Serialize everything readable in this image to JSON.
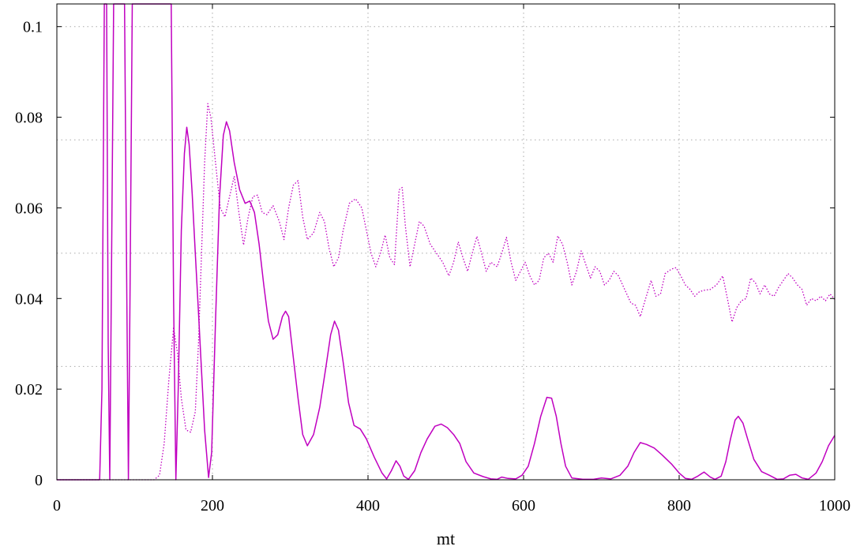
{
  "chart_data": {
    "type": "line",
    "title": "",
    "xlabel": "mt",
    "ylabel": "",
    "xlim": [
      0,
      1000
    ],
    "ylim": [
      0,
      0.105
    ],
    "x_ticks": [
      0,
      200,
      400,
      600,
      800,
      1000
    ],
    "x_tick_labels": [
      "0",
      "200",
      "400",
      "600",
      "800",
      "1000"
    ],
    "y_ticks": [
      0,
      0.02,
      0.04,
      0.06,
      0.08,
      0.1
    ],
    "y_tick_labels": [
      "0",
      "0.02",
      "0.04",
      "0.06",
      "0.08",
      "0.1"
    ],
    "grid": true,
    "grid_style": "dotted",
    "grid_x": [
      200,
      400,
      600,
      800
    ],
    "grid_y": [
      0.025,
      0.05,
      0.075,
      0.1
    ],
    "legend": "none",
    "series": [
      {
        "style": "solid",
        "color": "#c000c0",
        "points": [
          [
            0,
            0
          ],
          [
            55,
            0
          ],
          [
            58,
            0.02
          ],
          [
            61,
            0.105
          ],
          [
            64,
            0.105
          ],
          [
            66,
            0.03
          ],
          [
            68,
            0
          ],
          [
            70,
            0.04
          ],
          [
            73,
            0.105
          ],
          [
            87,
            0.105
          ],
          [
            90,
            0.04
          ],
          [
            92,
            0
          ],
          [
            94,
            0.04
          ],
          [
            97,
            0.105
          ],
          [
            147,
            0.105
          ],
          [
            150,
            0.04
          ],
          [
            153,
            0
          ],
          [
            156,
            0.02
          ],
          [
            160,
            0.055
          ],
          [
            164,
            0.072
          ],
          [
            167,
            0.0778
          ],
          [
            170,
            0.074
          ],
          [
            174,
            0.063
          ],
          [
            178,
            0.05
          ],
          [
            182,
            0.037
          ],
          [
            186,
            0.024
          ],
          [
            190,
            0.011
          ],
          [
            195,
            0.0005
          ],
          [
            199,
            0.006
          ],
          [
            204,
            0.035
          ],
          [
            209,
            0.062
          ],
          [
            214,
            0.076
          ],
          [
            218,
            0.079
          ],
          [
            222,
            0.077
          ],
          [
            228,
            0.07
          ],
          [
            235,
            0.064
          ],
          [
            242,
            0.061
          ],
          [
            248,
            0.0615
          ],
          [
            254,
            0.059
          ],
          [
            260,
            0.052
          ],
          [
            266,
            0.043
          ],
          [
            272,
            0.035
          ],
          [
            278,
            0.031
          ],
          [
            284,
            0.032
          ],
          [
            290,
            0.036
          ],
          [
            294,
            0.0372
          ],
          [
            298,
            0.036
          ],
          [
            304,
            0.027
          ],
          [
            310,
            0.018
          ],
          [
            316,
            0.01
          ],
          [
            322,
            0.0075
          ],
          [
            330,
            0.01
          ],
          [
            338,
            0.016
          ],
          [
            346,
            0.025
          ],
          [
            352,
            0.032
          ],
          [
            357,
            0.035
          ],
          [
            362,
            0.033
          ],
          [
            368,
            0.026
          ],
          [
            375,
            0.017
          ],
          [
            382,
            0.012
          ],
          [
            390,
            0.0112
          ],
          [
            398,
            0.009
          ],
          [
            408,
            0.005
          ],
          [
            418,
            0.0015
          ],
          [
            424,
            0.0002
          ],
          [
            430,
            0.002
          ],
          [
            436,
            0.0042
          ],
          [
            441,
            0.003
          ],
          [
            446,
            0.0008
          ],
          [
            452,
            0.0001
          ],
          [
            460,
            0.002
          ],
          [
            468,
            0.006
          ],
          [
            476,
            0.009
          ],
          [
            486,
            0.0118
          ],
          [
            494,
            0.0123
          ],
          [
            502,
            0.0115
          ],
          [
            510,
            0.01
          ],
          [
            518,
            0.008
          ],
          [
            526,
            0.004
          ],
          [
            536,
            0.0015
          ],
          [
            548,
            0.0007
          ],
          [
            558,
            0.0002
          ],
          [
            566,
            0.0001
          ],
          [
            572,
            0.0006
          ],
          [
            580,
            0.0003
          ],
          [
            590,
            0.0002
          ],
          [
            598,
            0.001
          ],
          [
            606,
            0.003
          ],
          [
            614,
            0.008
          ],
          [
            622,
            0.014
          ],
          [
            630,
            0.0182
          ],
          [
            636,
            0.018
          ],
          [
            642,
            0.014
          ],
          [
            648,
            0.008
          ],
          [
            654,
            0.003
          ],
          [
            662,
            0.0004
          ],
          [
            676,
            0.0001
          ],
          [
            690,
            0.0001
          ],
          [
            700,
            0.0004
          ],
          [
            712,
            0.0002
          ],
          [
            724,
            0.001
          ],
          [
            734,
            0.003
          ],
          [
            742,
            0.006
          ],
          [
            750,
            0.0082
          ],
          [
            758,
            0.0078
          ],
          [
            768,
            0.007
          ],
          [
            778,
            0.0055
          ],
          [
            790,
            0.0035
          ],
          [
            800,
            0.0015
          ],
          [
            808,
            0.0003
          ],
          [
            816,
            0.0001
          ],
          [
            824,
            0.0008
          ],
          [
            832,
            0.0017
          ],
          [
            840,
            0.0006
          ],
          [
            846,
            0.0001
          ],
          [
            854,
            0.0008
          ],
          [
            860,
            0.004
          ],
          [
            866,
            0.009
          ],
          [
            872,
            0.0132
          ],
          [
            876,
            0.014
          ],
          [
            882,
            0.0125
          ],
          [
            888,
            0.009
          ],
          [
            896,
            0.0045
          ],
          [
            906,
            0.0018
          ],
          [
            916,
            0.001
          ],
          [
            926,
            0.0001
          ],
          [
            934,
            0.0002
          ],
          [
            942,
            0.001
          ],
          [
            950,
            0.0012
          ],
          [
            958,
            0.0004
          ],
          [
            966,
            0.0001
          ],
          [
            976,
            0.0015
          ],
          [
            984,
            0.004
          ],
          [
            992,
            0.0075
          ],
          [
            1000,
            0.0098
          ]
        ]
      },
      {
        "style": "dotted",
        "color": "#c000c0",
        "points": [
          [
            0,
            0
          ],
          [
            125,
            0
          ],
          [
            132,
            0.001
          ],
          [
            138,
            0.008
          ],
          [
            144,
            0.022
          ],
          [
            150,
            0.0335
          ],
          [
            155,
            0.028
          ],
          [
            160,
            0.018
          ],
          [
            166,
            0.011
          ],
          [
            172,
            0.0105
          ],
          [
            178,
            0.015
          ],
          [
            182,
            0.03
          ],
          [
            186,
            0.05
          ],
          [
            190,
            0.07
          ],
          [
            194,
            0.083
          ],
          [
            198,
            0.08
          ],
          [
            204,
            0.07
          ],
          [
            210,
            0.06
          ],
          [
            216,
            0.058
          ],
          [
            222,
            0.0625
          ],
          [
            228,
            0.067
          ],
          [
            234,
            0.059
          ],
          [
            240,
            0.0518
          ],
          [
            246,
            0.058
          ],
          [
            252,
            0.0625
          ],
          [
            258,
            0.0628
          ],
          [
            264,
            0.059
          ],
          [
            270,
            0.0585
          ],
          [
            278,
            0.0605
          ],
          [
            286,
            0.057
          ],
          [
            292,
            0.053
          ],
          [
            298,
            0.06
          ],
          [
            304,
            0.065
          ],
          [
            310,
            0.066
          ],
          [
            316,
            0.058
          ],
          [
            322,
            0.053
          ],
          [
            330,
            0.0545
          ],
          [
            338,
            0.059
          ],
          [
            344,
            0.057
          ],
          [
            350,
            0.051
          ],
          [
            356,
            0.047
          ],
          [
            362,
            0.049
          ],
          [
            368,
            0.055
          ],
          [
            376,
            0.061
          ],
          [
            384,
            0.062
          ],
          [
            392,
            0.06
          ],
          [
            398,
            0.055
          ],
          [
            404,
            0.05
          ],
          [
            410,
            0.047
          ],
          [
            416,
            0.05
          ],
          [
            422,
            0.054
          ],
          [
            428,
            0.049
          ],
          [
            434,
            0.0475
          ],
          [
            440,
            0.064
          ],
          [
            444,
            0.0645
          ],
          [
            448,
            0.056
          ],
          [
            454,
            0.047
          ],
          [
            460,
            0.052
          ],
          [
            466,
            0.057
          ],
          [
            472,
            0.056
          ],
          [
            480,
            0.052
          ],
          [
            488,
            0.05
          ],
          [
            496,
            0.048
          ],
          [
            504,
            0.045
          ],
          [
            510,
            0.048
          ],
          [
            516,
            0.0525
          ],
          [
            522,
            0.049
          ],
          [
            528,
            0.046
          ],
          [
            534,
            0.05
          ],
          [
            540,
            0.0537
          ],
          [
            546,
            0.05
          ],
          [
            552,
            0.046
          ],
          [
            558,
            0.048
          ],
          [
            566,
            0.047
          ],
          [
            572,
            0.05
          ],
          [
            578,
            0.0535
          ],
          [
            584,
            0.048
          ],
          [
            590,
            0.044
          ],
          [
            596,
            0.046
          ],
          [
            602,
            0.048
          ],
          [
            608,
            0.045
          ],
          [
            614,
            0.043
          ],
          [
            620,
            0.044
          ],
          [
            626,
            0.049
          ],
          [
            632,
            0.05
          ],
          [
            638,
            0.048
          ],
          [
            644,
            0.0538
          ],
          [
            650,
            0.052
          ],
          [
            656,
            0.048
          ],
          [
            662,
            0.043
          ],
          [
            668,
            0.046
          ],
          [
            674,
            0.0505
          ],
          [
            680,
            0.0475
          ],
          [
            686,
            0.0445
          ],
          [
            692,
            0.047
          ],
          [
            698,
            0.046
          ],
          [
            704,
            0.043
          ],
          [
            710,
            0.044
          ],
          [
            716,
            0.046
          ],
          [
            722,
            0.045
          ],
          [
            730,
            0.042
          ],
          [
            738,
            0.039
          ],
          [
            744,
            0.0385
          ],
          [
            750,
            0.036
          ],
          [
            756,
            0.0395
          ],
          [
            764,
            0.044
          ],
          [
            770,
            0.0405
          ],
          [
            776,
            0.041
          ],
          [
            782,
            0.0455
          ],
          [
            790,
            0.0465
          ],
          [
            796,
            0.0468
          ],
          [
            802,
            0.045
          ],
          [
            808,
            0.043
          ],
          [
            814,
            0.042
          ],
          [
            820,
            0.0405
          ],
          [
            826,
            0.0415
          ],
          [
            832,
            0.0418
          ],
          [
            840,
            0.042
          ],
          [
            848,
            0.043
          ],
          [
            856,
            0.045
          ],
          [
            862,
            0.04
          ],
          [
            868,
            0.0348
          ],
          [
            874,
            0.038
          ],
          [
            880,
            0.0395
          ],
          [
            886,
            0.04
          ],
          [
            892,
            0.0445
          ],
          [
            898,
            0.0435
          ],
          [
            904,
            0.041
          ],
          [
            910,
            0.043
          ],
          [
            916,
            0.041
          ],
          [
            922,
            0.0405
          ],
          [
            928,
            0.0425
          ],
          [
            934,
            0.044
          ],
          [
            940,
            0.0455
          ],
          [
            946,
            0.0445
          ],
          [
            952,
            0.043
          ],
          [
            958,
            0.042
          ],
          [
            964,
            0.0385
          ],
          [
            970,
            0.04
          ],
          [
            976,
            0.0395
          ],
          [
            982,
            0.0405
          ],
          [
            988,
            0.0395
          ],
          [
            994,
            0.041
          ],
          [
            1000,
            0.0398
          ]
        ]
      }
    ]
  }
}
